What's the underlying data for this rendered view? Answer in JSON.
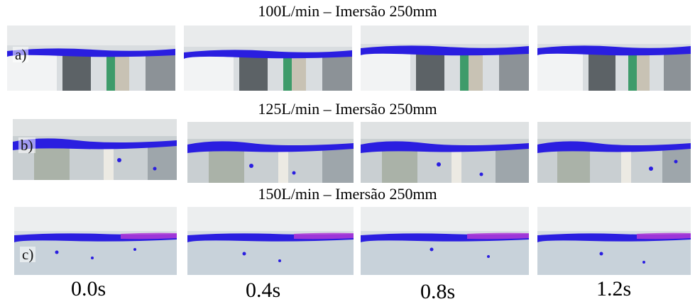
{
  "rows": [
    {
      "title": "100L/min – Imersão 250mm",
      "label": "a)"
    },
    {
      "title": "125L/min – Imersão 250mm",
      "label": "b)"
    },
    {
      "title": "150L/min – Imersão 250mm",
      "label": "c)"
    }
  ],
  "times": [
    "0.0s",
    "0.4s",
    "0.8s",
    "1.2s"
  ],
  "colors": {
    "dye": "#2a1ee0",
    "dye_magenta": "#b23bd6",
    "water": "#cfd6da",
    "glass_green": "#3e9b6a"
  }
}
